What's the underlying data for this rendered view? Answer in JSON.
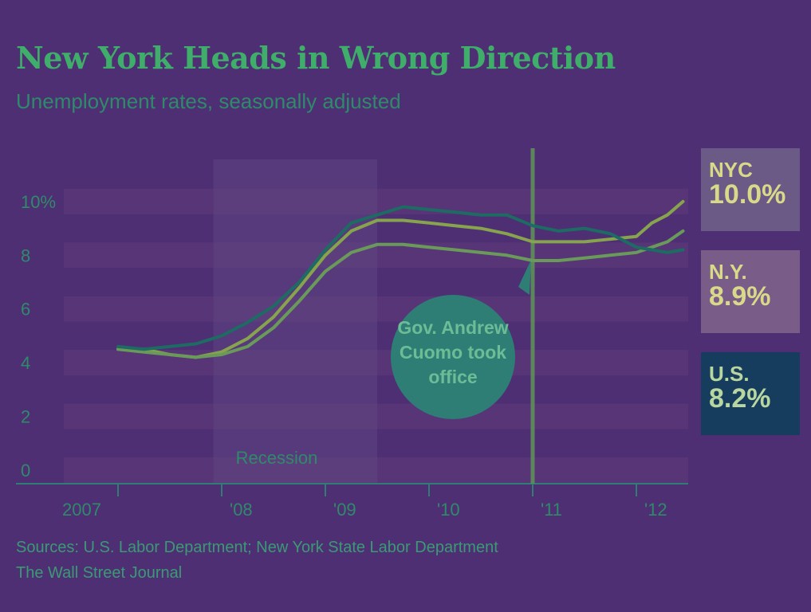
{
  "header": {
    "title": "New York Heads in Wrong Direction",
    "subtitle": "Unemployment rates, seasonally adjusted"
  },
  "footer": {
    "source": "Sources: U.S. Labor Department; New York State Labor Department",
    "publisher": "The Wall Street Journal"
  },
  "legend": [
    {
      "name": "NYC",
      "value": "10.0%",
      "color": "#87a34d"
    },
    {
      "name": "N.Y.",
      "value": "8.9%",
      "color": "#6a9a5a"
    },
    {
      "name": "U.S.",
      "value": "8.2%",
      "color": "#1d6b63"
    }
  ],
  "colors": {
    "background": "#4e2f73",
    "axis": "#2e7e76",
    "tick_label": "#2f8a6a",
    "band": "#5e3a7a",
    "callout": "#2e7e76"
  },
  "annotations": {
    "recession": "Recession",
    "callout": "Gov. Andrew Cuomo took office"
  },
  "chart_data": {
    "type": "line",
    "title": "New York Heads in Wrong Direction",
    "subtitle": "Unemployment rates, seasonally adjusted",
    "xlabel": "",
    "ylabel": "",
    "x_ticks": [
      {
        "label": "2007",
        "value": 2007.0
      },
      {
        "label": "'08",
        "value": 2008.0
      },
      {
        "label": "'09",
        "value": 2009.0
      },
      {
        "label": "'10",
        "value": 2010.0
      },
      {
        "label": "'11",
        "value": 2011.0
      },
      {
        "label": "'12",
        "value": 2012.0
      }
    ],
    "y_ticks": [
      {
        "label": "10%",
        "value": 10
      },
      {
        "label": "8",
        "value": 8
      },
      {
        "label": "6",
        "value": 6
      },
      {
        "label": "4",
        "value": 4
      },
      {
        "label": "2",
        "value": 2
      },
      {
        "label": "0",
        "value": 0
      }
    ],
    "xlim": [
      2007.0,
      2012.5
    ],
    "ylim": [
      0,
      10.5
    ],
    "recession_span": [
      2007.92,
      2009.5
    ],
    "event_line": {
      "x": 2011.0,
      "label": "Gov. Andrew Cuomo took office"
    },
    "series": [
      {
        "name": "NYC",
        "color": "#87a34d",
        "x": [
          2007.0,
          2007.25,
          2007.5,
          2007.75,
          2008.0,
          2008.25,
          2008.5,
          2008.75,
          2009.0,
          2009.25,
          2009.5,
          2009.75,
          2010.0,
          2010.25,
          2010.5,
          2010.75,
          2011.0,
          2011.25,
          2011.5,
          2011.75,
          2012.0,
          2012.15,
          2012.3,
          2012.45
        ],
        "y": [
          4.5,
          4.5,
          4.3,
          4.2,
          4.4,
          4.9,
          5.7,
          6.8,
          8.0,
          8.9,
          9.3,
          9.3,
          9.2,
          9.1,
          9.0,
          8.8,
          8.5,
          8.5,
          8.5,
          8.6,
          8.7,
          9.2,
          9.5,
          10.0
        ]
      },
      {
        "name": "N.Y.",
        "color": "#6a9a5a",
        "x": [
          2007.0,
          2007.25,
          2007.5,
          2007.75,
          2008.0,
          2008.25,
          2008.5,
          2008.75,
          2009.0,
          2009.25,
          2009.5,
          2009.75,
          2010.0,
          2010.25,
          2010.5,
          2010.75,
          2011.0,
          2011.25,
          2011.5,
          2011.75,
          2012.0,
          2012.15,
          2012.3,
          2012.45
        ],
        "y": [
          4.5,
          4.4,
          4.3,
          4.2,
          4.3,
          4.6,
          5.3,
          6.3,
          7.4,
          8.1,
          8.4,
          8.4,
          8.3,
          8.2,
          8.1,
          8.0,
          7.8,
          7.8,
          7.9,
          8.0,
          8.1,
          8.3,
          8.5,
          8.9
        ]
      },
      {
        "name": "U.S.",
        "color": "#1d6b63",
        "x": [
          2007.0,
          2007.25,
          2007.5,
          2007.75,
          2008.0,
          2008.25,
          2008.5,
          2008.75,
          2009.0,
          2009.25,
          2009.5,
          2009.75,
          2010.0,
          2010.25,
          2010.5,
          2010.75,
          2011.0,
          2011.25,
          2011.5,
          2011.75,
          2012.0,
          2012.15,
          2012.3,
          2012.45
        ],
        "y": [
          4.6,
          4.5,
          4.6,
          4.7,
          5.0,
          5.5,
          6.1,
          7.0,
          8.2,
          9.2,
          9.5,
          9.8,
          9.7,
          9.6,
          9.5,
          9.5,
          9.1,
          8.9,
          9.0,
          8.8,
          8.3,
          8.2,
          8.1,
          8.2
        ]
      }
    ]
  }
}
